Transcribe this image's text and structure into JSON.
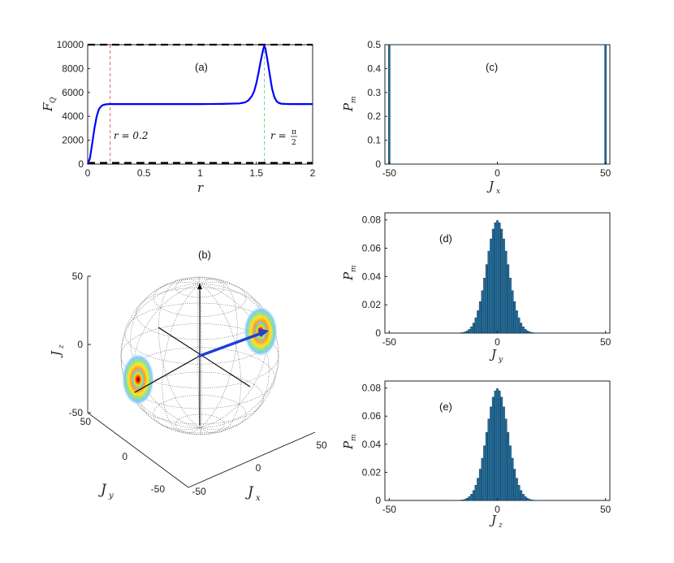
{
  "chart_data": [
    {
      "id": "a",
      "type": "line",
      "panel_label": "(a)",
      "xlabel": "r",
      "ylabel_main": "F",
      "ylabel_sub": "Q",
      "xlim": [
        0,
        2
      ],
      "ylim": [
        0,
        10000
      ],
      "xticks": [
        "0",
        "0.5",
        "1",
        "1.5",
        "2"
      ],
      "yticks": [
        "0",
        "2000",
        "4000",
        "6000",
        "8000",
        "10000"
      ],
      "series": [
        {
          "color": "#0000ff",
          "x": [
            0,
            0.02,
            0.04,
            0.06,
            0.08,
            0.1,
            0.12,
            0.14,
            0.16,
            0.18,
            0.2,
            0.25,
            0.3,
            0.5,
            0.8,
            1.0,
            1.2,
            1.35,
            1.4,
            1.43,
            1.46,
            1.48,
            1.5,
            1.52,
            1.54,
            1.56,
            1.57,
            1.58,
            1.6,
            1.62,
            1.64,
            1.66,
            1.68,
            1.7,
            1.72,
            1.75,
            1.8,
            2.0
          ],
          "y": [
            0,
            500,
            1700,
            3000,
            4000,
            4600,
            4850,
            4960,
            5000,
            5020,
            5030,
            5030,
            5030,
            5030,
            5030,
            5030,
            5040,
            5080,
            5170,
            5350,
            5700,
            6100,
            6800,
            7700,
            8700,
            9600,
            9900,
            9700,
            8600,
            7400,
            6300,
            5600,
            5250,
            5120,
            5060,
            5040,
            5030,
            5030
          ]
        }
      ],
      "hlines": [
        {
          "y": 10000,
          "color": "#000000",
          "style": "dashed"
        },
        {
          "y": 100,
          "color": "#000000",
          "style": "dashed"
        }
      ],
      "vlines": [
        {
          "x": 0.2,
          "color": "#e06060",
          "style": "dashed"
        },
        {
          "x": 1.5708,
          "color": "#80d080",
          "style": "dashed"
        }
      ],
      "annotations": {
        "r1_left": "r = 0.2",
        "r2_left": "r =",
        "r2_num": "π",
        "r2_den": "2"
      }
    },
    {
      "id": "b",
      "type": "bloch-sphere",
      "panel_label": "(b)",
      "zlabel_main": "J",
      "zlabel_sub": "z",
      "ylabel_main": "J",
      "ylabel_sub": "y",
      "xlabel_main": "J",
      "xlabel_sub": "x",
      "zticks": [
        "50",
        "0",
        "-50"
      ],
      "yticks": [
        "50",
        "0",
        "-50"
      ],
      "xticks": [
        "50",
        "0",
        "-50"
      ],
      "spots": [
        "at positive J_x end of axis",
        "at negative J_x end of axis"
      ],
      "colors": {
        "grid": "#555555",
        "axis": "#000000",
        "vector": "#1f3fd8"
      }
    },
    {
      "id": "c",
      "type": "bar",
      "panel_label": "(c)",
      "xlabel_main": "J",
      "xlabel_sub": "x",
      "ylabel_main": "P",
      "ylabel_sub": "m",
      "xlim": [
        -52,
        52
      ],
      "ylim": [
        0,
        0.5
      ],
      "xticks": [
        "-50",
        "0",
        "50"
      ],
      "yticks": [
        "0",
        "0.1",
        "0.2",
        "0.3",
        "0.4",
        "0.5"
      ],
      "values": [
        [
          -50,
          0.5
        ],
        [
          50,
          0.5
        ]
      ],
      "color": "#1f6fa0"
    },
    {
      "id": "d",
      "type": "bar",
      "panel_label": "(d)",
      "xlabel_main": "J",
      "xlabel_sub": "y",
      "ylabel_main": "P",
      "ylabel_sub": "m",
      "xlim": [
        -52,
        52
      ],
      "ylim": [
        0,
        0.085
      ],
      "xticks": [
        "-50",
        "0",
        "50"
      ],
      "yticks": [
        "0",
        "0.02",
        "0.04",
        "0.06",
        "0.08"
      ],
      "distribution": {
        "kind": "binomial",
        "N": 100,
        "peak": 0.0796
      },
      "color": "#1f6fa0"
    },
    {
      "id": "e",
      "type": "bar",
      "panel_label": "(e)",
      "xlabel_main": "J",
      "xlabel_sub": "z",
      "ylabel_main": "P",
      "ylabel_sub": "m",
      "xlim": [
        -52,
        52
      ],
      "ylim": [
        0,
        0.085
      ],
      "xticks": [
        "-50",
        "0",
        "50"
      ],
      "yticks": [
        "0",
        "0.02",
        "0.04",
        "0.06",
        "0.08"
      ],
      "distribution": {
        "kind": "binomial",
        "N": 100,
        "peak": 0.0796
      },
      "color": "#1f6fa0"
    }
  ]
}
